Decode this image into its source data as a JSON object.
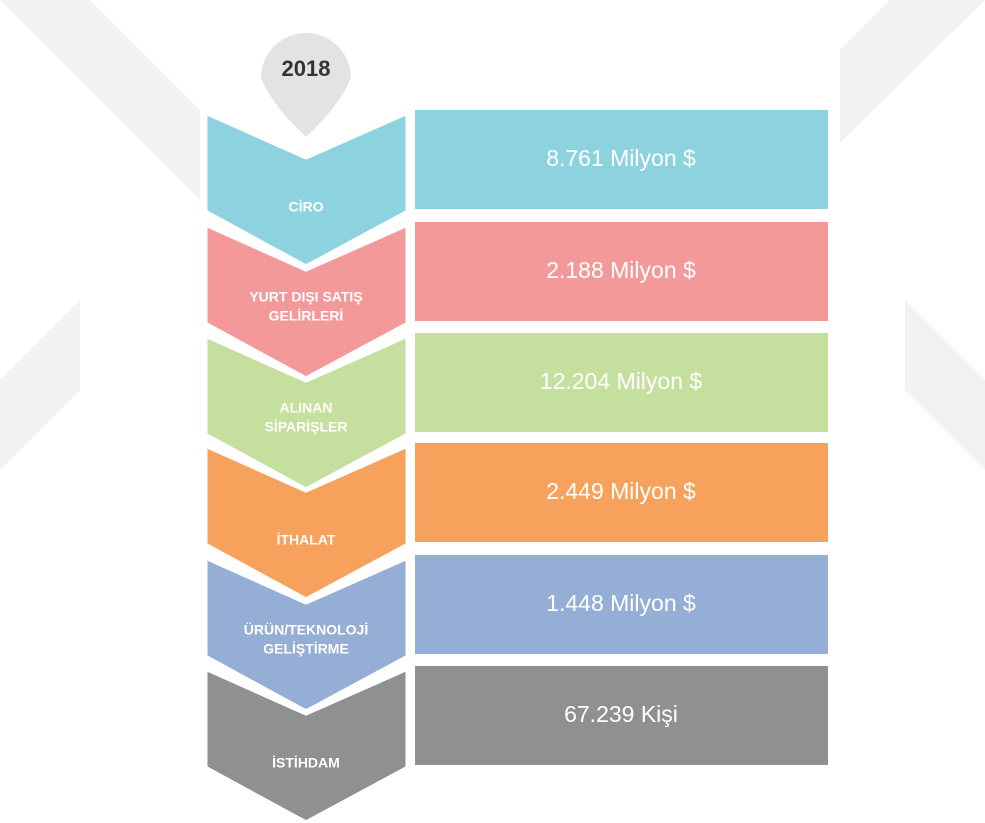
{
  "year": "2018",
  "rows": [
    {
      "label": [
        "CİRO"
      ],
      "value": "8.761 Milyon $",
      "color": "#8dd3df"
    },
    {
      "label": [
        "YURT DIŞI SATIŞ",
        "GELİRLERİ"
      ],
      "value": "2.188 Milyon $",
      "color": "#f4999a"
    },
    {
      "label": [
        "ALINAN",
        "SİPARİŞLER"
      ],
      "value": "12.204 Milyon $",
      "color": "#c5df9e"
    },
    {
      "label": [
        "İTHALAT"
      ],
      "value": "2.449 Milyon $",
      "color": "#f7a25c"
    },
    {
      "label": [
        "ÜRÜN/TEKNOLOJİ",
        "GELİŞTİRME"
      ],
      "value": "1.448 Milyon $",
      "color": "#94aed5"
    },
    {
      "label": [
        "İSTİHDAM"
      ],
      "value": "67.239 Kişi",
      "color": "#8f9091"
    }
  ]
}
